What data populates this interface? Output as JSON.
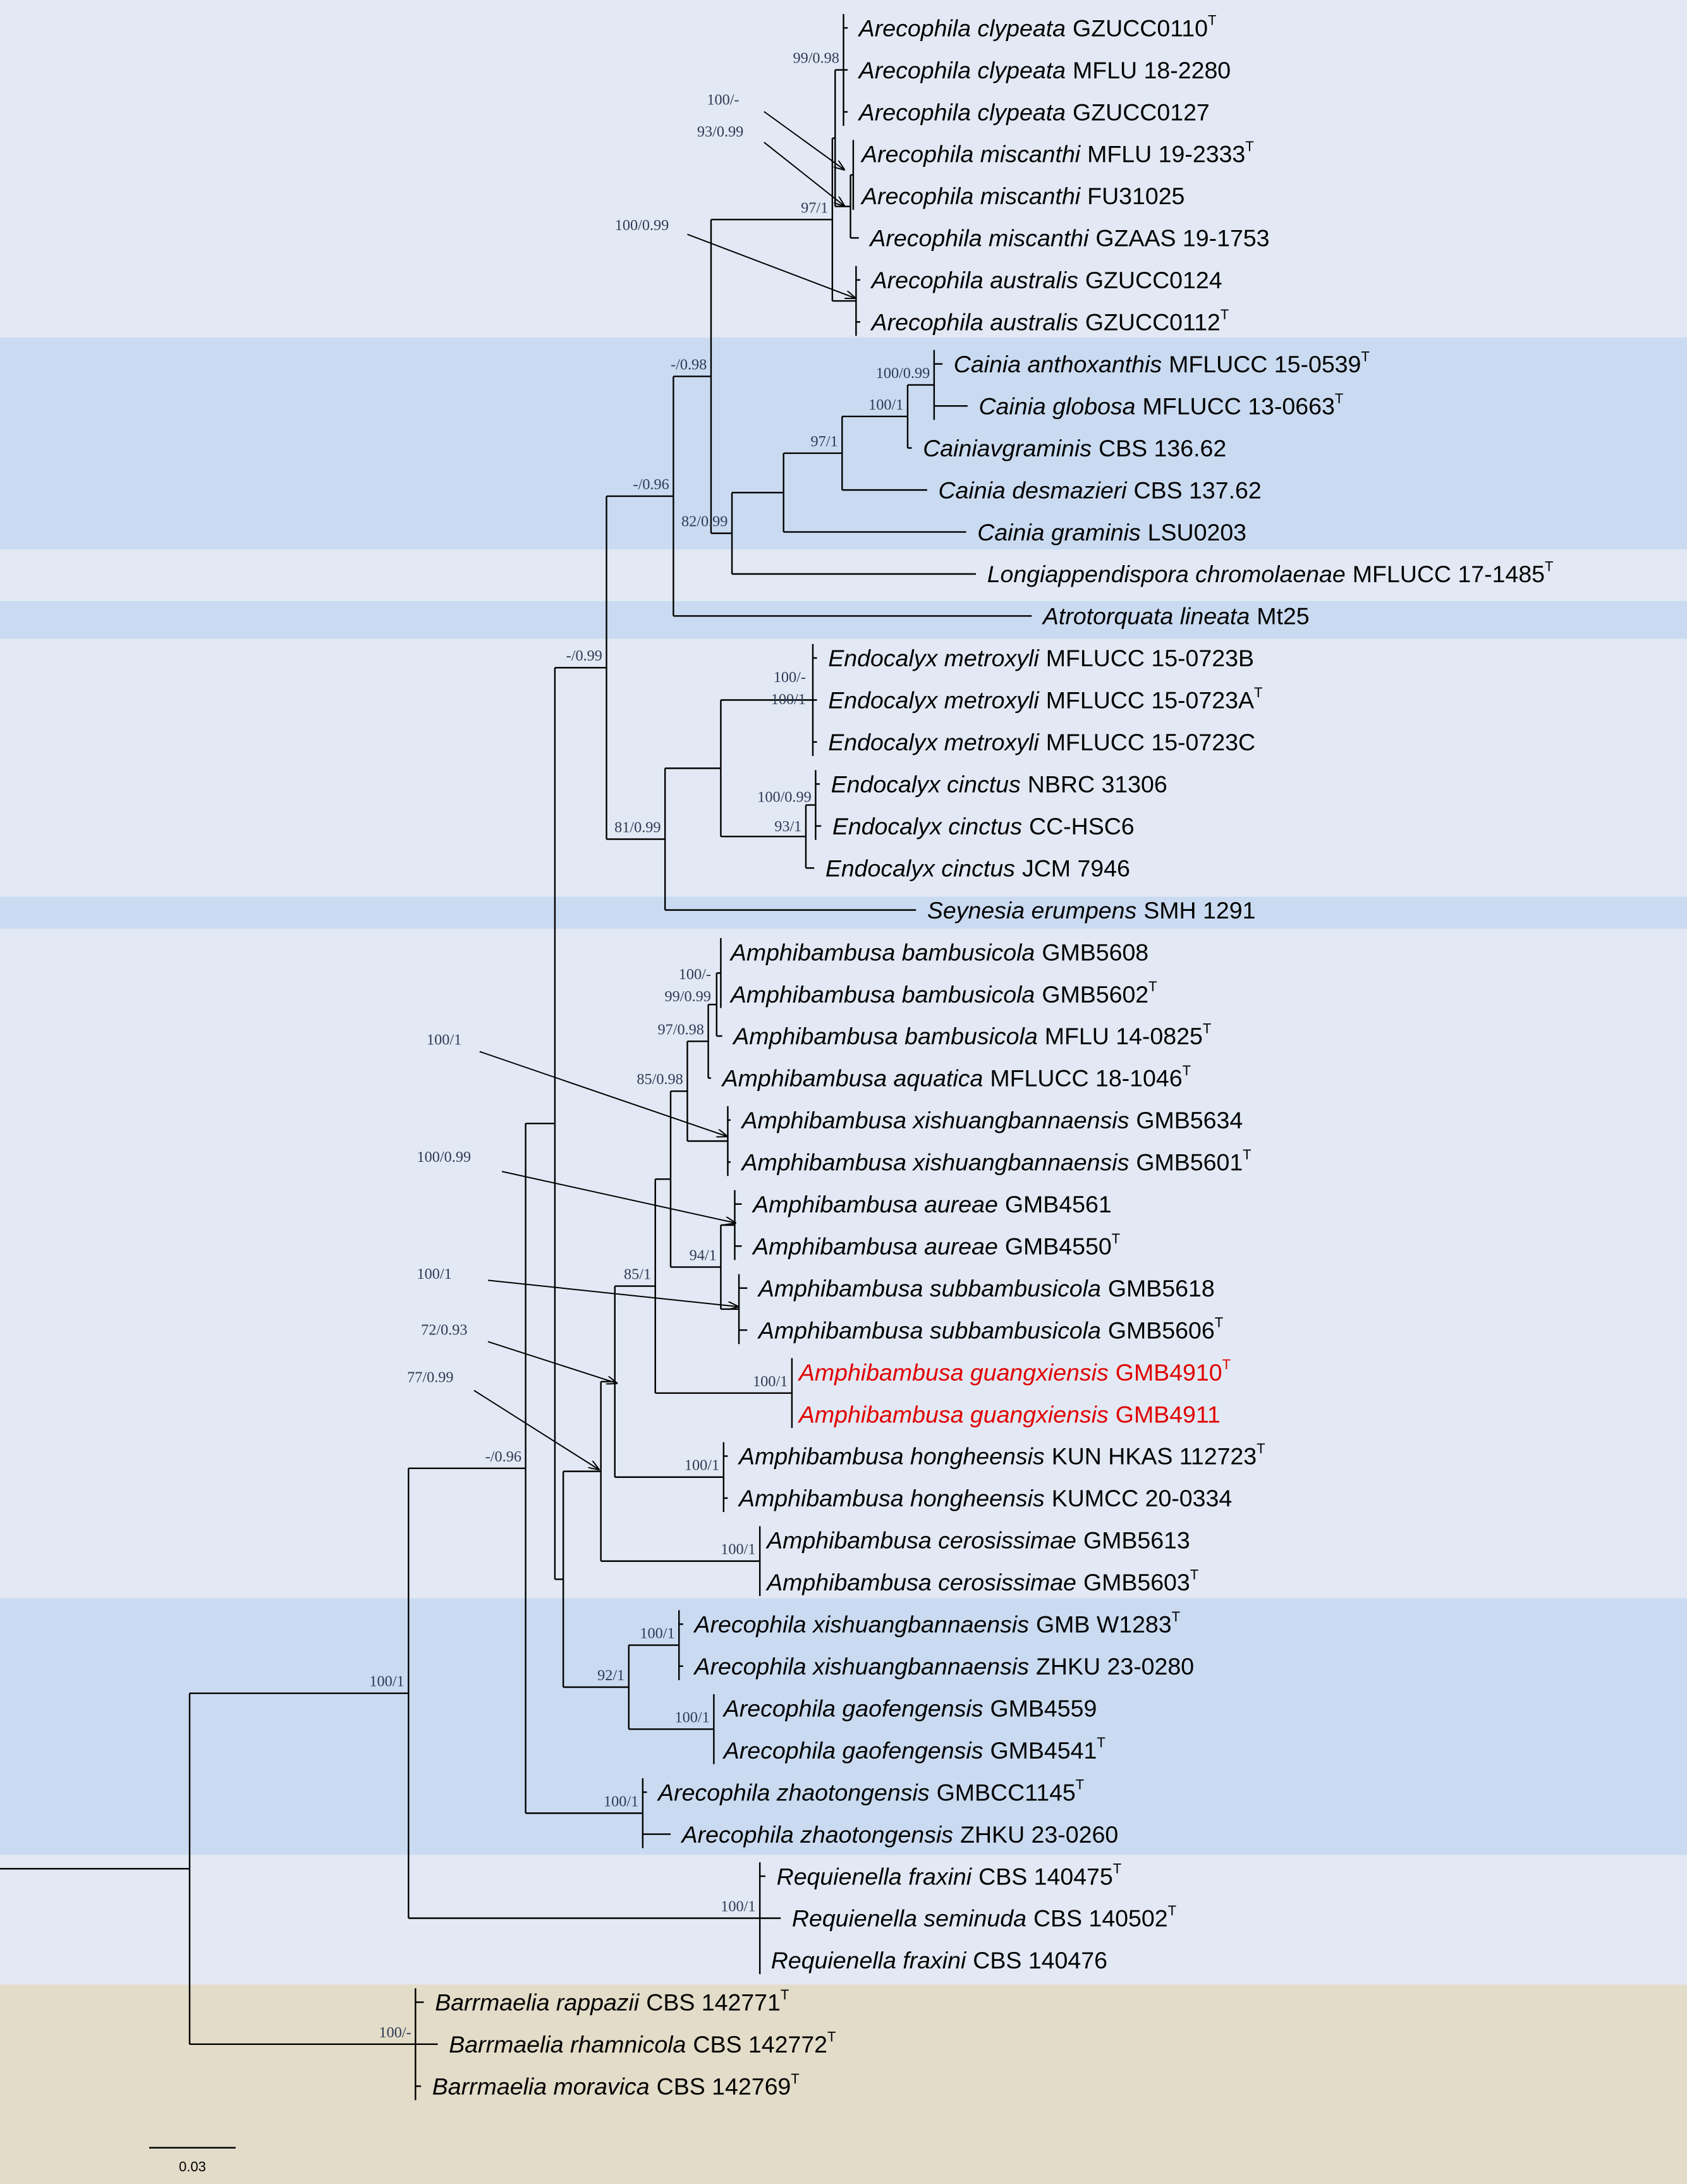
{
  "colors": {
    "background": "#e2e9f4",
    "band_blue": "#cadbf1",
    "band_tan": "#e3dcc8",
    "highlight": "#e00000"
  },
  "taxa": [
    {
      "species": "Arecophila clypeata",
      "strain": "GZUCC0110",
      "type_marker": "T"
    },
    {
      "species": "Arecophila clypeata",
      "strain": "MFLU 18-2280"
    },
    {
      "species": "Arecophila clypeata",
      "strain": "GZUCC0127"
    },
    {
      "species": "Arecophila miscanthi",
      "strain": "MFLU 19-2333",
      "type_marker": "T"
    },
    {
      "species": "Arecophila miscanthi",
      "strain": "FU31025"
    },
    {
      "species": "Arecophila miscanthi",
      "strain": "GZAAS 19-1753"
    },
    {
      "species": "Arecophila australis",
      "strain": "GZUCC0124"
    },
    {
      "species": "Arecophila australis",
      "strain": "GZUCC0112",
      "type_marker": "T"
    },
    {
      "species": "Cainia anthoxanthis",
      "strain": "MFLUCC 15-0539",
      "type_marker": "T"
    },
    {
      "species": "Cainia globosa",
      "strain": "MFLUCC 13-0663",
      "type_marker": "T"
    },
    {
      "species": "Cainiavgraminis",
      "strain": "CBS 136.62"
    },
    {
      "species": "Cainia desmazieri",
      "strain": "CBS 137.62"
    },
    {
      "species": "Cainia graminis",
      "strain": "LSU0203"
    },
    {
      "species": "Longiappendispora chromolaenae",
      "strain": "MFLUCC 17-1485",
      "type_marker": "T"
    },
    {
      "species": "Atrotorquata lineata",
      "strain": "Mt25"
    },
    {
      "species": "Endocalyx metroxyli",
      "strain": "MFLUCC 15-0723B"
    },
    {
      "species": "Endocalyx metroxyli",
      "strain": "MFLUCC 15-0723A",
      "type_marker": "T"
    },
    {
      "species": "Endocalyx metroxyli",
      "strain": "MFLUCC 15-0723C"
    },
    {
      "species": "Endocalyx cinctus",
      "strain": "NBRC 31306"
    },
    {
      "species": "Endocalyx cinctus",
      "strain": "CC-HSC6"
    },
    {
      "species": "Endocalyx cinctus",
      "strain": "JCM 7946"
    },
    {
      "species": "Seynesia erumpens",
      "strain": "SMH 1291"
    },
    {
      "species": "Amphibambusa bambusicola",
      "strain": "GMB5608"
    },
    {
      "species": "Amphibambusa bambusicola",
      "strain": "GMB5602",
      "type_marker": "T"
    },
    {
      "species": "Amphibambusa bambusicola",
      "strain": "MFLU 14-0825",
      "type_marker": "T"
    },
    {
      "species": "Amphibambusa aquatica",
      "strain": "MFLUCC 18-1046",
      "type_marker": "T"
    },
    {
      "species": "Amphibambusa xishuangbannaensis",
      "strain": "GMB5634"
    },
    {
      "species": "Amphibambusa xishuangbannaensis",
      "strain": "GMB5601",
      "type_marker": "T"
    },
    {
      "species": "Amphibambusa aureae",
      "strain": "GMB4561"
    },
    {
      "species": "Amphibambusa aureae",
      "strain": "GMB4550",
      "type_marker": "T"
    },
    {
      "species": "Amphibambusa subbambusicola",
      "strain": "GMB5618"
    },
    {
      "species": "Amphibambusa subbambusicola",
      "strain": "GMB5606",
      "type_marker": "T"
    },
    {
      "species": "Amphibambusa guangxiensis",
      "strain": "GMB4910",
      "type_marker": "T",
      "highlight": true
    },
    {
      "species": "Amphibambusa guangxiensis",
      "strain": "GMB4911",
      "highlight": true
    },
    {
      "species": "Amphibambusa hongheensis",
      "strain": "KUN HKAS 112723",
      "type_marker": "T"
    },
    {
      "species": "Amphibambusa hongheensis",
      "strain": "KUMCC 20-0334"
    },
    {
      "species": "Amphibambusa cerosissimae",
      "strain": "GMB5613"
    },
    {
      "species": "Amphibambusa cerosissimae",
      "strain": "GMB5603",
      "type_marker": "T"
    },
    {
      "species": "Arecophila xishuangbannaensis",
      "strain": "GMB W1283",
      "type_marker": "T"
    },
    {
      "species": "Arecophila xishuangbannaensis",
      "strain": "ZHKU 23-0280"
    },
    {
      "species": "Arecophila gaofengensis",
      "strain": "GMB4559"
    },
    {
      "species": "Arecophila gaofengensis",
      "strain": "GMB4541",
      "type_marker": "T"
    },
    {
      "species": "Arecophila zhaotongensis",
      "strain": "GMBCC1145",
      "type_marker": "T"
    },
    {
      "species": "Arecophila zhaotongensis",
      "strain": "ZHKU 23-0260"
    },
    {
      "species": "Requienella fraxini",
      "strain": "CBS 140475",
      "type_marker": "T"
    },
    {
      "species": "Requienella seminuda",
      "strain": "CBS 140502",
      "type_marker": "T"
    },
    {
      "species": "Requienella fraxini",
      "strain": "CBS 140476"
    },
    {
      "species": "Barrmaelia rappazii",
      "strain": "CBS 142771",
      "type_marker": "T"
    },
    {
      "species": "Barrmaelia rhamnicola",
      "strain": "CBS 142772",
      "type_marker": "T"
    },
    {
      "species": "Barrmaelia moravica",
      "strain": "CBS 142769",
      "type_marker": "T"
    }
  ],
  "supports": {
    "barrmaelia": "100/-",
    "clade_main": "100/1",
    "requienella": "100/1",
    "b": "-/0.96",
    "zhaotongensis": "100/1",
    "d": "-/0.99",
    "x": "-/0.96",
    "x2": "-/0.98",
    "arecophila_top": "97/1",
    "clypeata": "99/0.98",
    "miscanthi": "93/0.99",
    "mi2": "100/-",
    "australis": "100/0.99",
    "cainia_clade": "82/0.99",
    "ca3": "97/1",
    "ca4": "100/1",
    "ca5": "100/0.99",
    "y": "81/0.99",
    "metroxyli_a": "100/-",
    "metroxyli_b": "100/1",
    "cinctus": "93/1",
    "ec2": "100/0.99",
    "g": "92/1",
    "ar_xish": "100/1",
    "gaofengensis": "100/1",
    "f": "77/0.99",
    "cerosissimae": "100/1",
    "j": "72/0.93",
    "hongheensis": "100/1",
    "l": "85/1",
    "guangxiensis": "100/1",
    "q": "94/1",
    "aureae": "100/0.99",
    "subbambusicola": "100/1",
    "p": "85/0.98",
    "amph_xish": "100/1",
    "t": "97/0.98",
    "v": "99/0.99",
    "w": "100/-"
  },
  "scale_bar": {
    "label": "0.03"
  }
}
